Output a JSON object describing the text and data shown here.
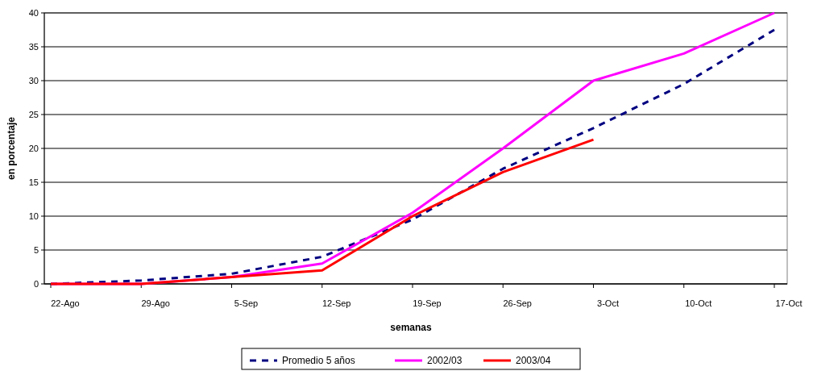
{
  "chart_data": {
    "type": "line",
    "xlabel": "semanas",
    "ylabel": "en porcentaje",
    "categories": [
      "22-Ago",
      "29-Ago",
      "5-Sep",
      "12-Sep",
      "19-Sep",
      "26-Sep",
      "3-Oct",
      "10-Oct",
      "17-Oct"
    ],
    "series": [
      {
        "name": "Promedio 5 años",
        "color": "#000080",
        "line_style": "dashed",
        "values": [
          0,
          0.5,
          1.5,
          4,
          9.5,
          17,
          23,
          29.5,
          37.5
        ]
      },
      {
        "name": "2002/03",
        "color": "#ff00ff",
        "values": [
          0,
          0,
          1,
          3,
          10.5,
          20,
          30,
          34,
          40
        ]
      },
      {
        "name": "2003/04",
        "color": "#ff0000",
        "values": [
          0,
          0,
          1,
          2,
          10,
          16.5,
          21.3,
          null,
          null
        ]
      }
    ],
    "ylim": [
      0,
      40
    ],
    "yticks": [
      0,
      5,
      10,
      15,
      20,
      25,
      30,
      35,
      40
    ],
    "grid": "y",
    "legend": "bottom"
  }
}
